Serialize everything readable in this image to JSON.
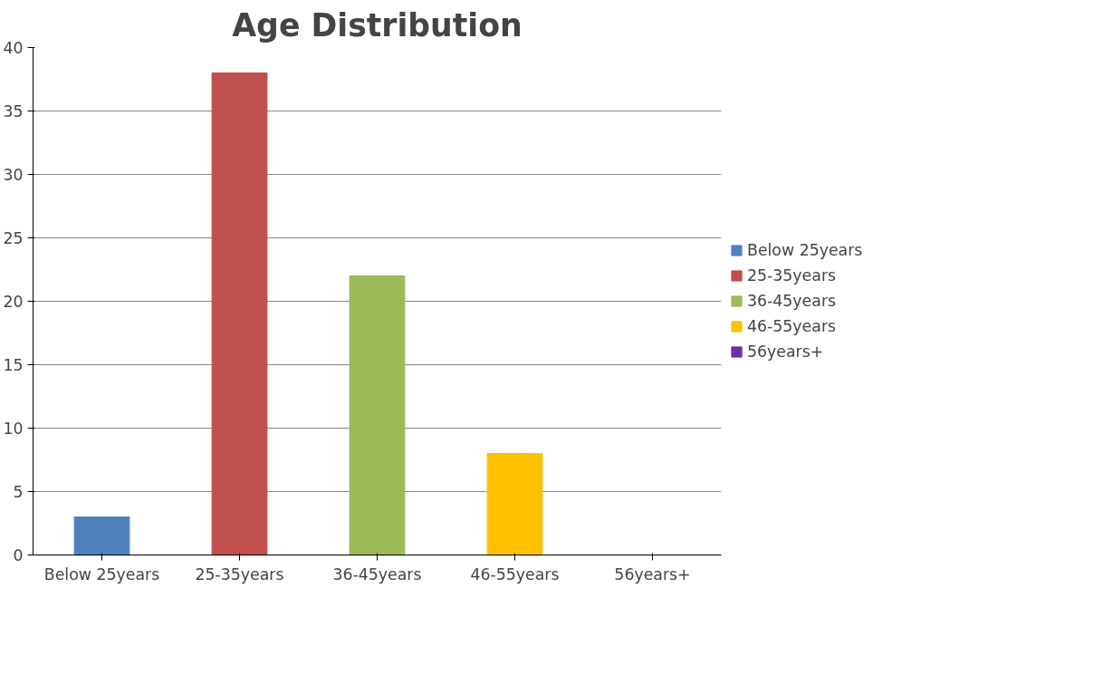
{
  "chart_data": {
    "type": "bar",
    "title": "Age Distribution",
    "categories": [
      "Below 25years",
      "25-35years",
      "36-45years",
      "46-55years",
      "56years+"
    ],
    "series": [
      {
        "name": "Below 25years",
        "color": "#4f81bd",
        "values": [
          3,
          null,
          null,
          null,
          null
        ]
      },
      {
        "name": "25-35years",
        "color": "#c0504d",
        "values": [
          null,
          38,
          null,
          null,
          null
        ]
      },
      {
        "name": "36-45years",
        "color": "#9bbb59",
        "values": [
          null,
          null,
          22,
          null,
          null
        ]
      },
      {
        "name": "46-55years",
        "color": "#ffc000",
        "values": [
          null,
          null,
          null,
          8,
          null
        ]
      },
      {
        "name": "56years+",
        "color": "#7030a0",
        "values": [
          null,
          null,
          null,
          null,
          0
        ]
      }
    ],
    "ylim": [
      0,
      40
    ],
    "yticks": [
      0,
      5,
      10,
      15,
      20,
      25,
      30,
      35,
      40
    ],
    "grid": "y",
    "legend": "right"
  }
}
